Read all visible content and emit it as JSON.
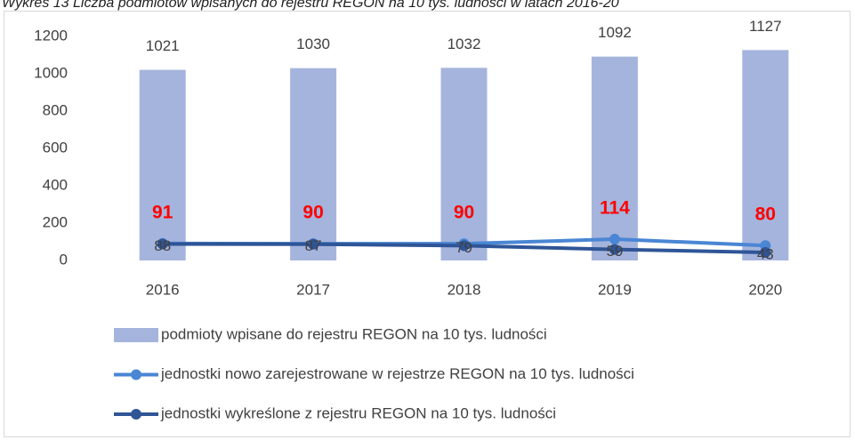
{
  "chart_data": {
    "type": "bar_line",
    "title": "Wykres 13 Liczba podmiotów wpisanych do rejestru REGON na 10 tys. ludności w latach 2016-20",
    "categories": [
      "2016",
      "2017",
      "2018",
      "2019",
      "2020"
    ],
    "series": [
      {
        "name": "podmioty wpisane do rejestru REGON na 10 tys. ludności",
        "type": "bar",
        "color": "#a5b4dc",
        "values": [
          1021,
          1030,
          1032,
          1092,
          1127
        ]
      },
      {
        "name": "jednostki nowo zarejestrowane w rejestrze REGON na 10 tys. ludności",
        "type": "line",
        "color": "#4a86d4",
        "label_color": "#ff0000",
        "values": [
          91,
          90,
          90,
          114,
          80
        ]
      },
      {
        "name": "jednostki wykreślone z rejestru REGON na 10 tys. ludności",
        "type": "line",
        "color": "#2f5597",
        "label_color": "#404040",
        "values": [
          88,
          87,
          79,
          59,
          43
        ]
      }
    ],
    "ylim": [
      0,
      1200
    ],
    "yticks": [
      0,
      200,
      400,
      600,
      800,
      1000,
      1200
    ],
    "grid": false,
    "legend": "bottom"
  }
}
